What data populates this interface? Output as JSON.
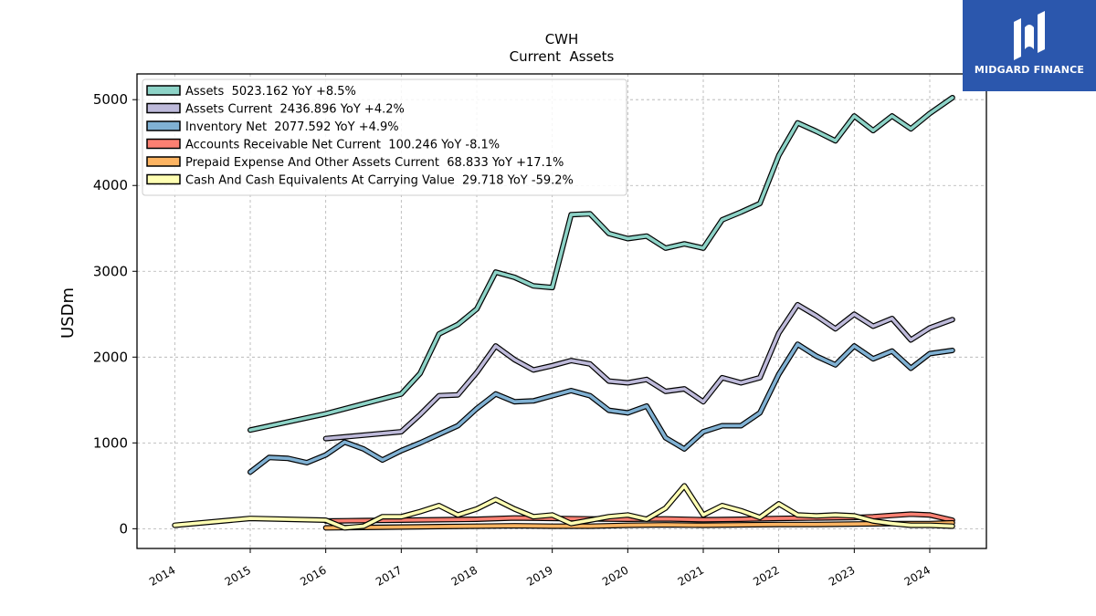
{
  "brand": {
    "name": "MIDGARD FINANCE",
    "logo_icon": "midgard-m-logo-icon",
    "background": "#2b57ad"
  },
  "chart_data": {
    "type": "line",
    "title": "CWH",
    "subtitle": "Current  Assets",
    "ylabel": "USDm",
    "xlabel": "",
    "xlim": [
      2013.5,
      2024.75
    ],
    "ylim": [
      -230,
      5300
    ],
    "x_ticks": [
      "2014",
      "2015",
      "2016",
      "2017",
      "2018",
      "2019",
      "2020",
      "2021",
      "2022",
      "2023",
      "2024"
    ],
    "y_ticks": [
      "0",
      "1000",
      "2000",
      "3000",
      "4000",
      "5000"
    ],
    "grid": true,
    "legend_position": "top-left",
    "series": [
      {
        "name": "Assets  5023.162 YoY +8.5%",
        "color": "#8dd3c7",
        "x": [
          2015.0,
          2016.0,
          2017.0,
          2017.25,
          2017.5,
          2017.75,
          2018.0,
          2018.25,
          2018.5,
          2018.75,
          2019.0,
          2019.25,
          2019.5,
          2019.75,
          2020.0,
          2020.25,
          2020.5,
          2020.75,
          2021.0,
          2021.25,
          2021.5,
          2021.75,
          2022.0,
          2022.25,
          2022.5,
          2022.75,
          2023.0,
          2023.25,
          2023.5,
          2023.75,
          2024.0,
          2024.3
        ],
        "y": [
          1150,
          1340,
          1570,
          1810,
          2270,
          2380,
          2560,
          2990,
          2930,
          2830,
          2810,
          3660,
          3670,
          3440,
          3380,
          3410,
          3270,
          3320,
          3270,
          3600,
          3690,
          3790,
          4350,
          4730,
          4630,
          4520,
          4810,
          4640,
          4810,
          4660,
          4840,
          5023
        ]
      },
      {
        "name": "Assets Current  2436.896 YoY +4.2%",
        "color": "#bebada",
        "x": [
          2016.0,
          2017.0,
          2017.25,
          2017.5,
          2017.75,
          2018.0,
          2018.25,
          2018.5,
          2018.75,
          2019.0,
          2019.25,
          2019.5,
          2019.75,
          2020.0,
          2020.25,
          2020.5,
          2020.75,
          2021.0,
          2021.25,
          2021.5,
          2021.75,
          2022.0,
          2022.25,
          2022.5,
          2022.75,
          2023.0,
          2023.25,
          2023.5,
          2023.75,
          2024.0,
          2024.3
        ],
        "y": [
          1050,
          1130,
          1330,
          1550,
          1560,
          1820,
          2130,
          1970,
          1850,
          1900,
          1960,
          1920,
          1720,
          1700,
          1740,
          1600,
          1630,
          1480,
          1760,
          1700,
          1760,
          2280,
          2610,
          2480,
          2330,
          2500,
          2360,
          2450,
          2200,
          2340,
          2437
        ]
      },
      {
        "name": "Inventory Net  2077.592 YoY +4.9%",
        "color": "#80b1d3",
        "x": [
          2015.0,
          2015.25,
          2015.5,
          2015.75,
          2016.0,
          2016.25,
          2016.5,
          2016.75,
          2017.0,
          2017.25,
          2017.5,
          2017.75,
          2018.0,
          2018.25,
          2018.5,
          2018.75,
          2019.0,
          2019.25,
          2019.5,
          2019.75,
          2020.0,
          2020.25,
          2020.5,
          2020.75,
          2021.0,
          2021.25,
          2021.5,
          2021.75,
          2022.0,
          2022.25,
          2022.5,
          2022.75,
          2023.0,
          2023.25,
          2023.5,
          2023.75,
          2024.0,
          2024.3
        ],
        "y": [
          660,
          830,
          820,
          770,
          860,
          1010,
          930,
          800,
          910,
          1000,
          1100,
          1200,
          1400,
          1570,
          1480,
          1490,
          1550,
          1610,
          1550,
          1380,
          1350,
          1430,
          1060,
          930,
          1130,
          1200,
          1200,
          1350,
          1800,
          2150,
          2010,
          1910,
          2130,
          1980,
          2070,
          1870,
          2040,
          2078
        ]
      },
      {
        "name": "Accounts Receivable Net Current  100.246 YoY -8.1%",
        "color": "#fb8072",
        "x": [
          2016.0,
          2016.5,
          2017.0,
          2017.5,
          2018.0,
          2018.5,
          2019.0,
          2019.5,
          2020.0,
          2020.5,
          2021.0,
          2021.5,
          2022.0,
          2022.5,
          2023.0,
          2023.25,
          2023.5,
          2023.75,
          2024.0,
          2024.3
        ],
        "y": [
          90,
          95,
          100,
          105,
          110,
          125,
          120,
          115,
          110,
          115,
          105,
          110,
          120,
          125,
          130,
          140,
          155,
          170,
          160,
          100
        ]
      },
      {
        "name": "Prepaid Expense And Other Assets Current  68.833 YoY +17.1%",
        "color": "#fdb462",
        "x": [
          2016.0,
          2016.5,
          2017.0,
          2017.5,
          2018.0,
          2018.5,
          2019.0,
          2019.5,
          2020.0,
          2020.5,
          2021.0,
          2021.5,
          2022.0,
          2022.5,
          2023.0,
          2023.5,
          2024.0,
          2024.3
        ],
        "y": [
          10,
          15,
          20,
          25,
          30,
          35,
          30,
          30,
          40,
          45,
          40,
          45,
          50,
          50,
          55,
          60,
          60,
          69
        ]
      },
      {
        "name": "Cash And Cash Equivalents At Carrying Value  29.718 YoY -59.2%",
        "color": "#ffffb3",
        "x": [
          2014.0,
          2015.0,
          2016.0,
          2016.25,
          2016.5,
          2016.75,
          2017.0,
          2017.25,
          2017.5,
          2017.75,
          2018.0,
          2018.25,
          2018.5,
          2018.75,
          2019.0,
          2019.25,
          2019.5,
          2019.75,
          2020.0,
          2020.25,
          2020.5,
          2020.75,
          2021.0,
          2021.25,
          2021.5,
          2021.75,
          2022.0,
          2022.25,
          2022.5,
          2022.75,
          2023.0,
          2023.25,
          2023.5,
          2023.75,
          2024.0,
          2024.3
        ],
        "y": [
          40,
          120,
          100,
          10,
          30,
          140,
          140,
          200,
          270,
          160,
          230,
          340,
          230,
          140,
          160,
          60,
          100,
          140,
          160,
          110,
          240,
          500,
          160,
          270,
          210,
          130,
          290,
          160,
          150,
          160,
          150,
          90,
          60,
          40,
          40,
          30
        ]
      }
    ]
  }
}
